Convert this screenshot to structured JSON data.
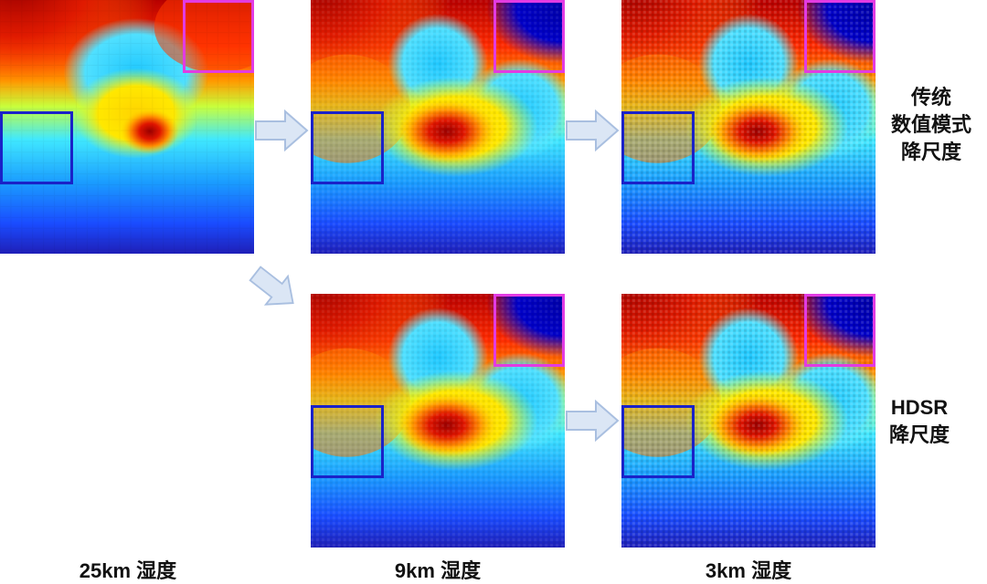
{
  "row_labels": {
    "traditional": [
      "传统",
      "数值模式",
      "降尺度"
    ],
    "hdsr": [
      "HDSR",
      "降尺度"
    ]
  },
  "column_labels": {
    "col_25km": "25km 湿度",
    "col_9km": "9km 湿度",
    "col_3km": "3km 湿度"
  },
  "colors": {
    "zoom_box_blue": "#1a22c8",
    "zoom_box_magenta": "#e23be2",
    "arrow_fill": "#dbe6f5",
    "arrow_stroke": "#a9bfe0",
    "colormap": "jet"
  }
}
